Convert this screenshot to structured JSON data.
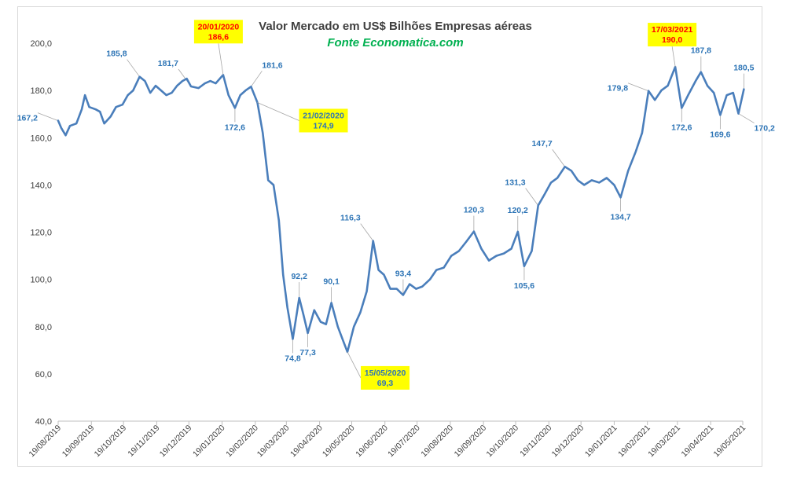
{
  "chart_data": {
    "type": "line",
    "title": "Valor Mercado em US$ Bilhões Empresas aéreas",
    "subtitle": "Fonte Economatica.com",
    "ylim": [
      40,
      200
    ],
    "yticks": [
      "40,0",
      "60,0",
      "80,0",
      "100,0",
      "120,0",
      "140,0",
      "160,0",
      "180,0",
      "200,0"
    ],
    "xticks": [
      "19/08/2019",
      "19/09/2019",
      "19/10/2019",
      "19/11/2019",
      "19/12/2019",
      "19/01/2020",
      "19/02/2020",
      "19/03/2020",
      "19/04/2020",
      "19/05/2020",
      "19/06/2020",
      "19/07/2020",
      "19/08/2020",
      "19/09/2020",
      "19/10/2020",
      "19/11/2020",
      "19/12/2020",
      "19/01/2021",
      "19/02/2021",
      "19/03/2021",
      "19/04/2021",
      "19/05/2021"
    ],
    "grid": false,
    "line_color": "#4a7ebb",
    "series": [
      {
        "values": [
          [
            "19/08/2019",
            167.2
          ],
          [
            "22/08/2019",
            164
          ],
          [
            "26/08/2019",
            161
          ],
          [
            "30/08/2019",
            165
          ],
          [
            "05/09/2019",
            166
          ],
          [
            "10/09/2019",
            172
          ],
          [
            "13/09/2019",
            178
          ],
          [
            "17/09/2019",
            173
          ],
          [
            "23/09/2019",
            172
          ],
          [
            "27/09/2019",
            171
          ],
          [
            "01/10/2019",
            166
          ],
          [
            "07/10/2019",
            169
          ],
          [
            "12/10/2019",
            173
          ],
          [
            "18/10/2019",
            174
          ],
          [
            "23/10/2019",
            178
          ],
          [
            "28/10/2019",
            180
          ],
          [
            "03/11/2019",
            185.8
          ],
          [
            "08/11/2019",
            184
          ],
          [
            "13/11/2019",
            179
          ],
          [
            "18/11/2019",
            182
          ],
          [
            "23/11/2019",
            180
          ],
          [
            "28/11/2019",
            178
          ],
          [
            "03/12/2019",
            179
          ],
          [
            "08/12/2019",
            182
          ],
          [
            "13/12/2019",
            184
          ],
          [
            "17/12/2019",
            185
          ],
          [
            "21/12/2019",
            181.7
          ],
          [
            "28/12/2019",
            181
          ],
          [
            "03/01/2020",
            183
          ],
          [
            "08/01/2020",
            184
          ],
          [
            "13/01/2020",
            183
          ],
          [
            "20/01/2020",
            186.6
          ],
          [
            "25/01/2020",
            178
          ],
          [
            "31/01/2020",
            172.6
          ],
          [
            "05/02/2020",
            178
          ],
          [
            "10/02/2020",
            180
          ],
          [
            "15/02/2020",
            181.6
          ],
          [
            "21/02/2020",
            174.9
          ],
          [
            "26/02/2020",
            162
          ],
          [
            "02/03/2020",
            142
          ],
          [
            "07/03/2020",
            140
          ],
          [
            "12/03/2020",
            125
          ],
          [
            "16/03/2020",
            102
          ],
          [
            "20/03/2020",
            88
          ],
          [
            "25/03/2020",
            74.8
          ],
          [
            "31/03/2020",
            92.2
          ],
          [
            "04/04/2020",
            85
          ],
          [
            "08/04/2020",
            77.3
          ],
          [
            "14/04/2020",
            87
          ],
          [
            "20/04/2020",
            82
          ],
          [
            "25/04/2020",
            81
          ],
          [
            "30/04/2020",
            90.1
          ],
          [
            "06/05/2020",
            80
          ],
          [
            "11/05/2020",
            74
          ],
          [
            "15/05/2020",
            69.3
          ],
          [
            "21/05/2020",
            80
          ],
          [
            "27/05/2020",
            86
          ],
          [
            "02/06/2020",
            95
          ],
          [
            "08/06/2020",
            116.3
          ],
          [
            "13/06/2020",
            104
          ],
          [
            "18/06/2020",
            102
          ],
          [
            "24/06/2020",
            96
          ],
          [
            "30/06/2020",
            96
          ],
          [
            "06/07/2020",
            93.4
          ],
          [
            "12/07/2020",
            98
          ],
          [
            "18/07/2020",
            96
          ],
          [
            "24/07/2020",
            97
          ],
          [
            "31/07/2020",
            100
          ],
          [
            "06/08/2020",
            104
          ],
          [
            "13/08/2020",
            105
          ],
          [
            "20/08/2020",
            110
          ],
          [
            "27/08/2020",
            112
          ],
          [
            "03/09/2020",
            116
          ],
          [
            "10/09/2020",
            120.3
          ],
          [
            "17/09/2020",
            113
          ],
          [
            "24/09/2020",
            108
          ],
          [
            "01/10/2020",
            110
          ],
          [
            "08/10/2020",
            111
          ],
          [
            "15/10/2020",
            113
          ],
          [
            "21/10/2020",
            120.2
          ],
          [
            "27/10/2020",
            105.6
          ],
          [
            "03/11/2020",
            112
          ],
          [
            "09/11/2020",
            131.3
          ],
          [
            "15/11/2020",
            136
          ],
          [
            "21/11/2020",
            141
          ],
          [
            "27/11/2020",
            143
          ],
          [
            "04/12/2020",
            147.7
          ],
          [
            "10/12/2020",
            146
          ],
          [
            "16/12/2020",
            142
          ],
          [
            "22/12/2020",
            140
          ],
          [
            "29/12/2020",
            142
          ],
          [
            "05/01/2021",
            141
          ],
          [
            "12/01/2021",
            143
          ],
          [
            "19/01/2021",
            140
          ],
          [
            "25/01/2021",
            134.7
          ],
          [
            "01/02/2021",
            146
          ],
          [
            "08/02/2021",
            154
          ],
          [
            "14/02/2021",
            162
          ],
          [
            "20/02/2021",
            179.8
          ],
          [
            "26/02/2021",
            176
          ],
          [
            "04/03/2021",
            180
          ],
          [
            "10/03/2021",
            182
          ],
          [
            "17/03/2021",
            190.0
          ],
          [
            "23/03/2021",
            172.6
          ],
          [
            "29/03/2021",
            178
          ],
          [
            "05/04/2021",
            184
          ],
          [
            "10/04/2021",
            187.8
          ],
          [
            "16/04/2021",
            182
          ],
          [
            "22/04/2021",
            179
          ],
          [
            "28/04/2021",
            169.6
          ],
          [
            "04/05/2021",
            178
          ],
          [
            "10/05/2021",
            179
          ],
          [
            "15/05/2021",
            170.2
          ],
          [
            "20/05/2021",
            180.5
          ]
        ]
      }
    ],
    "point_labels": [
      {
        "text": "167,2",
        "date": "19/08/2019",
        "value": 167.2,
        "pos": "left"
      },
      {
        "text": "185,8",
        "date": "03/11/2019",
        "value": 185.8,
        "pos": "top-left"
      },
      {
        "text": "181,7",
        "date": "21/12/2019",
        "value": 181.7,
        "pos": "top-left"
      },
      {
        "text": "172,6",
        "date": "31/01/2020",
        "value": 172.6,
        "pos": "bottom"
      },
      {
        "text": "181,6",
        "date": "15/02/2020",
        "value": 181.6,
        "pos": "top-right"
      },
      {
        "text": "92,2",
        "date": "31/03/2020",
        "value": 92.2,
        "pos": "top"
      },
      {
        "text": "74,8",
        "date": "25/03/2020",
        "value": 74.8,
        "pos": "bottom"
      },
      {
        "text": "77,3",
        "date": "08/04/2020",
        "value": 77.3,
        "pos": "bottom"
      },
      {
        "text": "90,1",
        "date": "30/04/2020",
        "value": 90.1,
        "pos": "top"
      },
      {
        "text": "116,3",
        "date": "08/06/2020",
        "value": 116.3,
        "pos": "top-left"
      },
      {
        "text": "93,4",
        "date": "06/07/2020",
        "value": 93.4,
        "pos": "top"
      },
      {
        "text": "120,3",
        "date": "10/09/2020",
        "value": 120.3,
        "pos": "top"
      },
      {
        "text": "120,2",
        "date": "21/10/2020",
        "value": 120.2,
        "pos": "top"
      },
      {
        "text": "105,6",
        "date": "27/10/2020",
        "value": 105.6,
        "pos": "bottom"
      },
      {
        "text": "131,3",
        "date": "09/11/2020",
        "value": 131.3,
        "pos": "top-left"
      },
      {
        "text": "147,7",
        "date": "04/12/2020",
        "value": 147.7,
        "pos": "top-left"
      },
      {
        "text": "134,7",
        "date": "25/01/2021",
        "value": 134.7,
        "pos": "bottom"
      },
      {
        "text": "179,8",
        "date": "20/02/2021",
        "value": 179.8,
        "pos": "left"
      },
      {
        "text": "172,6",
        "date": "23/03/2021",
        "value": 172.6,
        "pos": "bottom"
      },
      {
        "text": "187,8",
        "date": "10/04/2021",
        "value": 187.8,
        "pos": "top"
      },
      {
        "text": "169,6",
        "date": "28/04/2021",
        "value": 169.6,
        "pos": "bottom"
      },
      {
        "text": "180,5",
        "date": "20/05/2021",
        "value": 180.5,
        "pos": "top"
      },
      {
        "text": "170,2",
        "date": "15/05/2021",
        "value": 170.2,
        "pos": "bottom-right"
      }
    ],
    "callouts": [
      {
        "date_text": "20/01/2020",
        "value_text": "186,6",
        "date": "20/01/2020",
        "value": 186.6,
        "fill": "#ffff00",
        "date_color": "#ff0000",
        "value_color": "#ff0000"
      },
      {
        "date_text": "21/02/2020",
        "value_text": "174,9",
        "date": "21/02/2020",
        "value": 174.9,
        "fill": "#ffff00",
        "date_color": "#2e75b6",
        "value_color": "#2e75b6"
      },
      {
        "date_text": "15/05/2020",
        "value_text": "69,3",
        "date": "15/05/2020",
        "value": 69.3,
        "fill": "#ffff00",
        "date_color": "#2e75b6",
        "value_color": "#2e75b6"
      },
      {
        "date_text": "17/03/2021",
        "value_text": "190,0",
        "date": "17/03/2021",
        "value": 190.0,
        "fill": "#ffff00",
        "date_color": "#ff0000",
        "value_color": "#ff0000"
      }
    ]
  }
}
